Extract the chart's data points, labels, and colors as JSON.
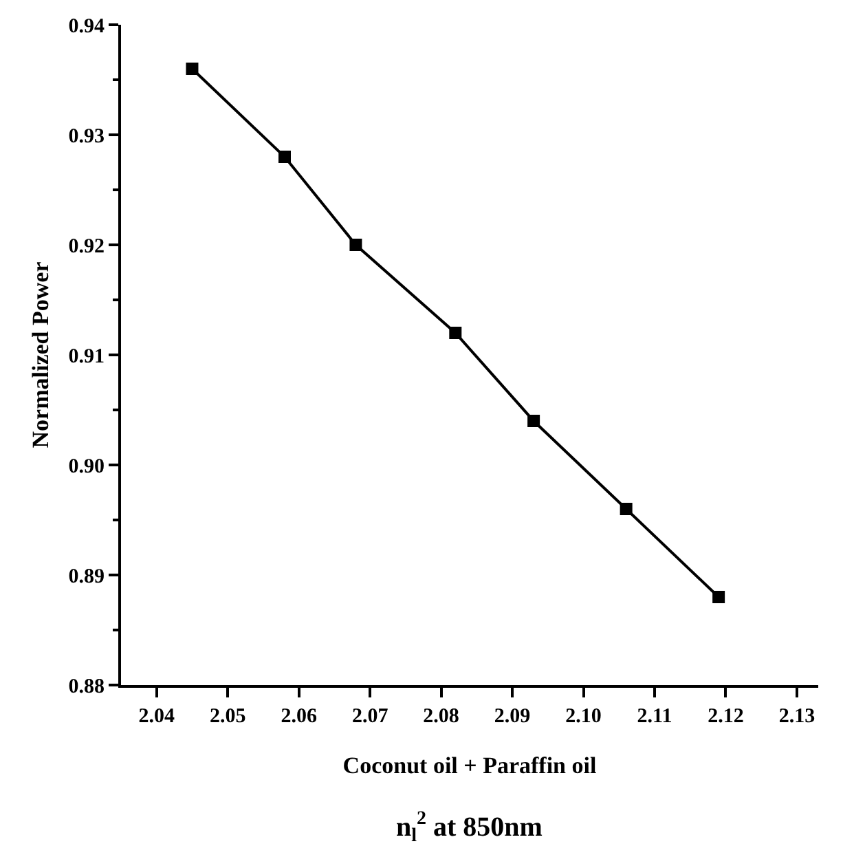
{
  "chart_data": {
    "type": "line",
    "xlabel": "Coconut oil + Paraffin oil",
    "ylabel": "Normalized Power",
    "annotations": [
      "n$_{l}$$^{2}$ at 850nm"
    ],
    "x": [
      2.045,
      2.058,
      2.068,
      2.082,
      2.093,
      2.106,
      2.119
    ],
    "series": [
      {
        "color": "#000000",
        "values": [
          0.936,
          0.928,
          0.92,
          0.912,
          0.904,
          0.896,
          0.888
        ]
      }
    ],
    "xlim": [
      2.035,
      2.133
    ],
    "xticks": [
      2.04,
      2.05,
      2.06,
      2.07,
      2.08,
      2.09,
      {
        "value": 2.1,
        "label": "2.10"
      },
      2.11,
      2.12,
      2.13
    ],
    "ylim": [
      0.88,
      0.94
    ],
    "yticks": [
      0.88,
      0.89,
      {
        "value": 0.9,
        "label": "0.90"
      },
      0.91,
      0.92,
      0.93,
      0.94
    ],
    "marker": "square",
    "line_style": "solid"
  }
}
